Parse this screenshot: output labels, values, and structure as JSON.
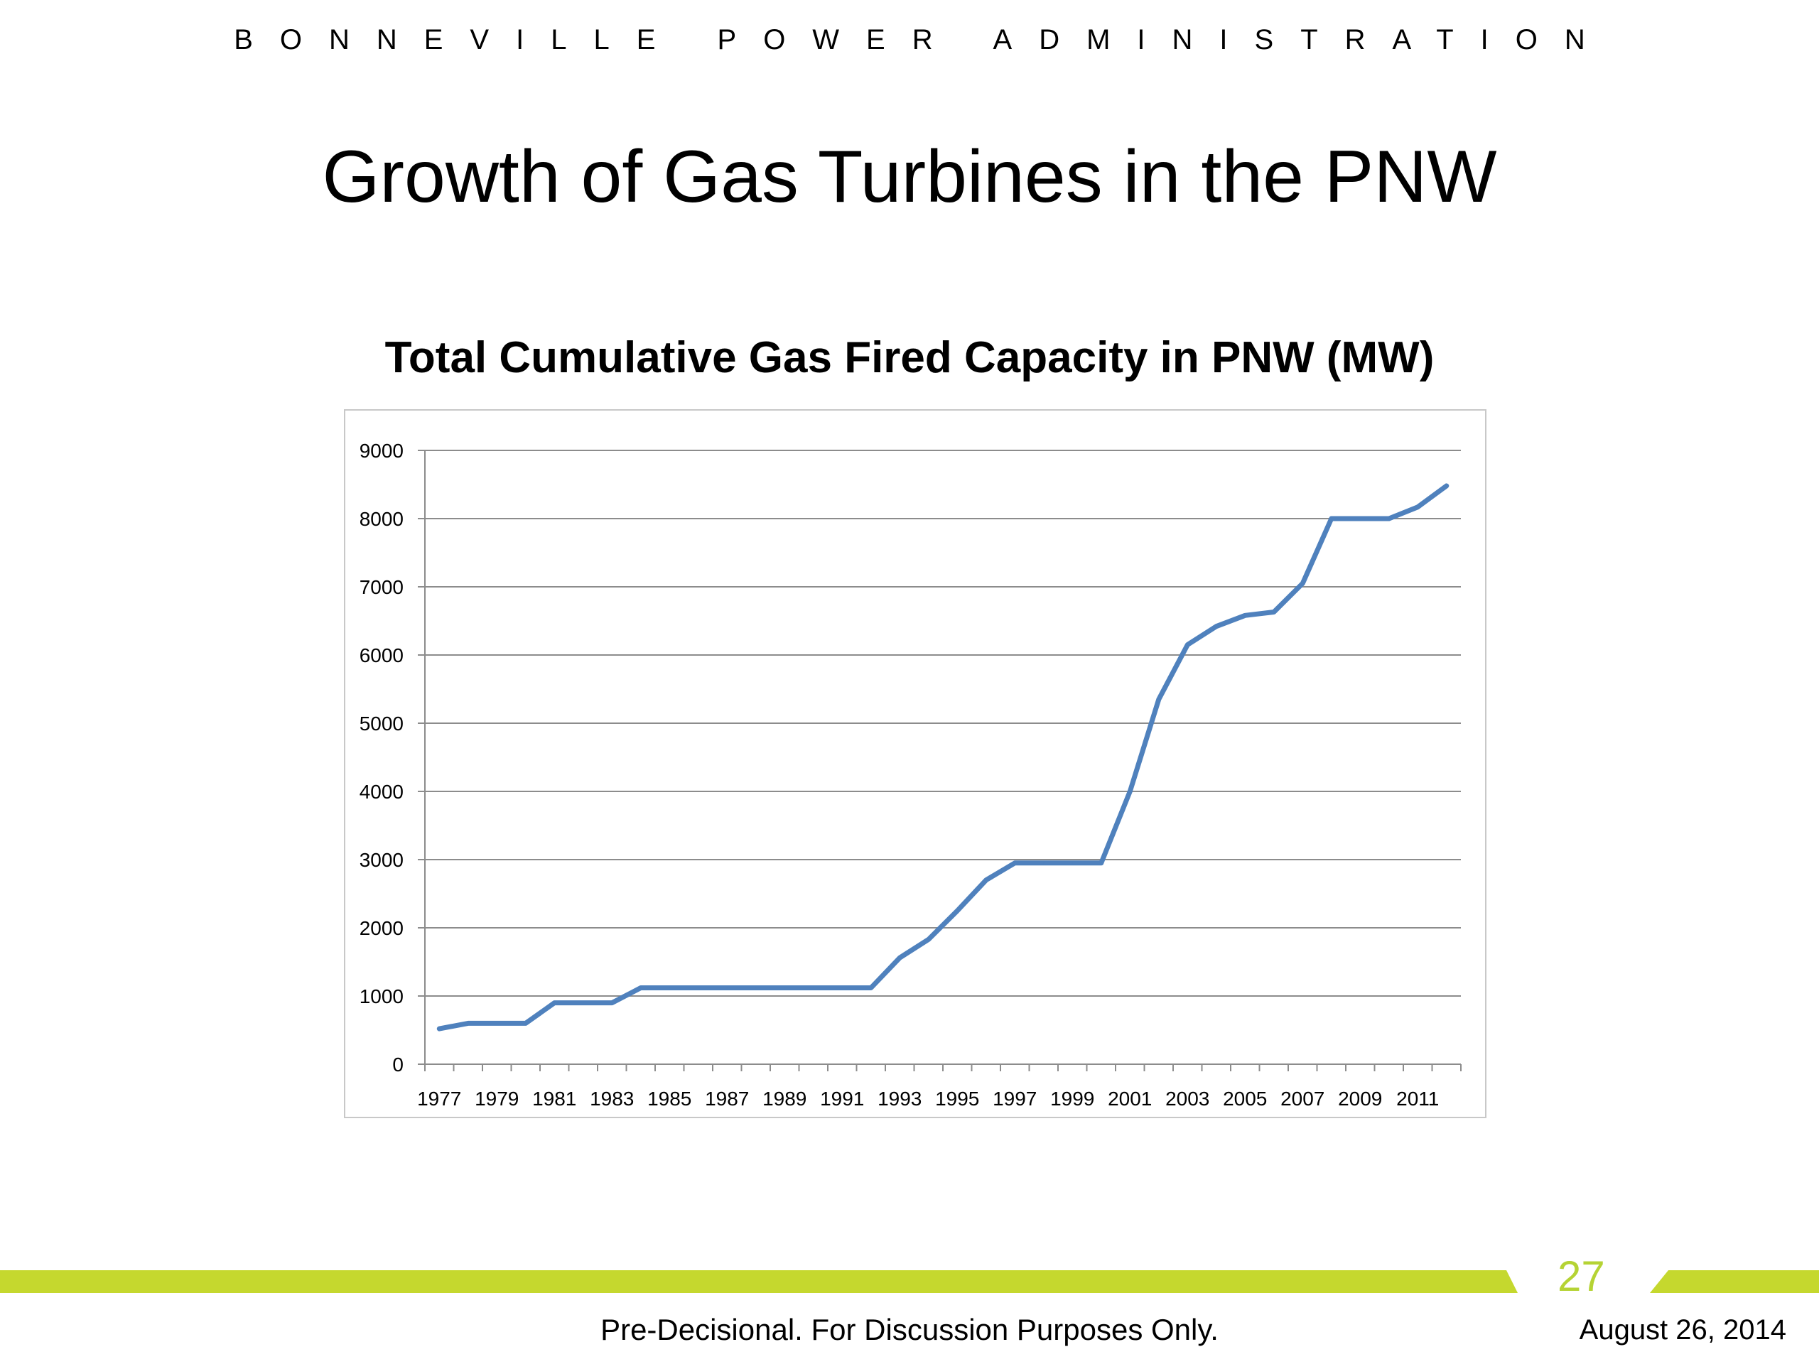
{
  "header": {
    "organization": "BONNEVILLE POWER ADMINISTRATION",
    "title": "Growth of Gas Turbines in the PNW"
  },
  "footer": {
    "note": "Pre-Decisional.  For Discussion Purposes Only.",
    "date": "August 26, 2014",
    "page_number": "27",
    "accent_color": "#c5d82e"
  },
  "chart_data": {
    "type": "line",
    "title": "Total Cumulative Gas Fired Capacity in PNW (MW)",
    "xlabel": "",
    "ylabel": "",
    "ylim": [
      0,
      9000
    ],
    "yticks": [
      0,
      1000,
      2000,
      3000,
      4000,
      5000,
      6000,
      7000,
      8000,
      9000
    ],
    "x": [
      1977,
      1978,
      1979,
      1980,
      1981,
      1982,
      1983,
      1984,
      1985,
      1986,
      1987,
      1988,
      1989,
      1990,
      1991,
      1992,
      1993,
      1994,
      1995,
      1996,
      1997,
      1998,
      1999,
      2000,
      2001,
      2002,
      2003,
      2004,
      2005,
      2006,
      2007,
      2008,
      2009,
      2010,
      2011,
      2012
    ],
    "xtick_labels": [
      "1977",
      "1979",
      "1981",
      "1983",
      "1985",
      "1987",
      "1989",
      "1991",
      "1993",
      "1995",
      "1997",
      "1999",
      "2001",
      "2003",
      "2005",
      "2007",
      "2009",
      "2011"
    ],
    "series": [
      {
        "color": "#4f81bd",
        "values": [
          520,
          600,
          600,
          600,
          900,
          900,
          900,
          1120,
          1120,
          1120,
          1120,
          1120,
          1120,
          1120,
          1120,
          1120,
          1560,
          1830,
          2250,
          2700,
          2950,
          2950,
          2950,
          2950,
          4000,
          5350,
          6150,
          6420,
          6580,
          6630,
          7050,
          8000,
          8000,
          8000,
          8170,
          8480
        ]
      }
    ],
    "grid": true,
    "legend": "none"
  }
}
